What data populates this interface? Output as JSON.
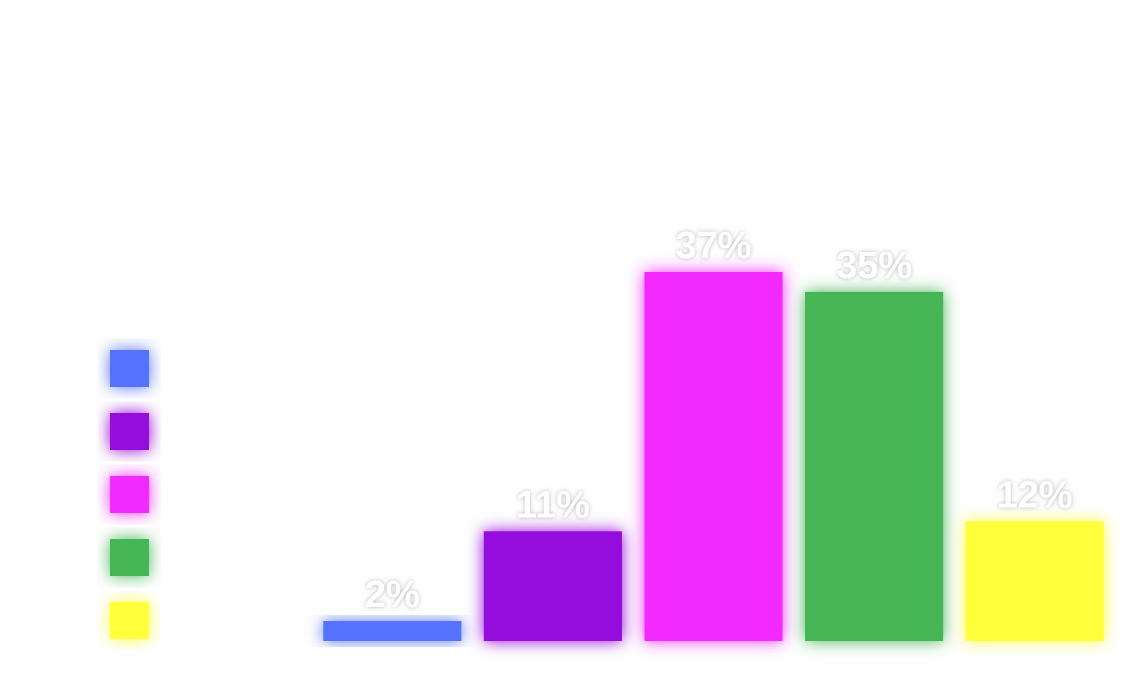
{
  "chart_data": {
    "type": "bar",
    "categories": [
      null,
      null,
      null,
      null,
      null
    ],
    "values": [
      2,
      11,
      37,
      35,
      12
    ],
    "value_labels": [
      "2%",
      "11%",
      "37%",
      "35%",
      "12%"
    ],
    "colors": [
      "#5572ff",
      "#9510dc",
      "#f22cff",
      "#45b557",
      "#ffff3a"
    ]
  }
}
